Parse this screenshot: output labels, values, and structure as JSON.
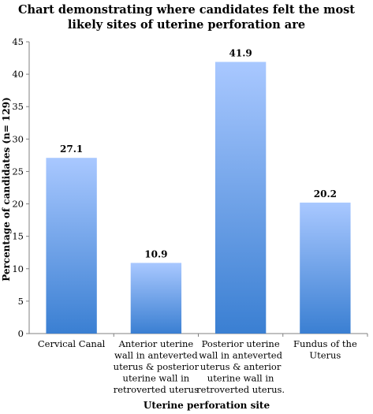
{
  "chart_data": {
    "type": "bar",
    "title_lines": [
      "Chart demonstrating where candidates felt the most",
      "likely sites of uterine perforation are"
    ],
    "xlabel": "Uterine perforation site",
    "ylabel": "Percentage of candidates (n= 129)",
    "ylim": [
      0,
      45
    ],
    "yticks": [
      0,
      5,
      10,
      15,
      20,
      25,
      30,
      35,
      40,
      45
    ],
    "grid": false,
    "legend": "none",
    "bar_gradient": {
      "top": "#a9c8ff",
      "bottom": "#3a7fd2"
    },
    "categories": [
      [
        "Cervical Canal"
      ],
      [
        "Anterior uterine",
        "wall in anteverted",
        "uterus & posterior",
        "uterine wall in",
        "retroverted uterus"
      ],
      [
        "Posterior uterine",
        "wall in anteverted",
        "uterus & anterior",
        "uterine wall in",
        "retroverted uterus."
      ],
      [
        "Fundus of the",
        "Uterus"
      ]
    ],
    "values": [
      27.1,
      10.9,
      41.9,
      20.2
    ],
    "value_labels": [
      "27.1",
      "10.9",
      "41.9",
      "20.2"
    ]
  }
}
